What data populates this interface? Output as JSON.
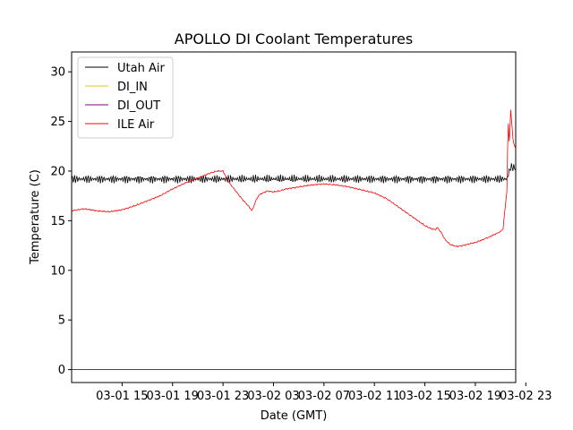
{
  "chart_data": {
    "type": "line",
    "title": "APOLLO DI Coolant Temperatures",
    "xlabel": "Date (GMT)",
    "ylabel": "Temperature (C)",
    "x_unit": "hours since 03-01 11:00 GMT",
    "xlim": [
      0,
      35.2
    ],
    "ylim": [
      -1.3,
      32
    ],
    "yticks": [
      0,
      5,
      10,
      15,
      20,
      25,
      30
    ],
    "xticks": [
      {
        "x": 4,
        "label": "03-01 15"
      },
      {
        "x": 8,
        "label": "03-01 19"
      },
      {
        "x": 12,
        "label": "03-01 23"
      },
      {
        "x": 16,
        "label": "03-02 03"
      },
      {
        "x": 20,
        "label": "03-02 07"
      },
      {
        "x": 24,
        "label": "03-02 11"
      },
      {
        "x": 28,
        "label": "03-02 15"
      },
      {
        "x": 32,
        "label": "03-02 19"
      },
      {
        "x": 36,
        "label": "03-02 23"
      }
    ],
    "grid": false,
    "legend_position": "top-left",
    "series": [
      {
        "name": "Utah Air",
        "color": "#000000",
        "x": [
          0,
          34.5,
          34.8,
          35.2
        ],
        "values": [
          19.2,
          19.2,
          20.4,
          20.3
        ],
        "noise": 0.45
      },
      {
        "name": "DI_IN",
        "color": "#e3c11b",
        "x": [
          0,
          35.2
        ],
        "values": [
          0.0,
          0.0
        ],
        "noise": 0
      },
      {
        "name": "DI_OUT",
        "color": "#800080",
        "x": [
          0,
          35.2
        ],
        "values": [
          0.0,
          0.0
        ],
        "noise": 0
      },
      {
        "name": "ILE Air",
        "color": "#ff0000",
        "x": [
          0,
          1,
          2,
          3,
          4,
          5,
          6,
          7,
          8,
          9,
          10,
          11,
          11.5,
          12,
          12.5,
          13,
          13.5,
          14,
          14.3,
          14.6,
          14.8,
          15,
          15.5,
          16,
          16.5,
          17,
          18,
          19,
          20,
          21,
          22,
          23,
          24,
          25,
          26,
          27,
          28,
          28.5,
          28.8,
          29,
          29.3,
          29.6,
          30,
          30.5,
          31,
          32,
          33,
          34,
          34.2,
          34.3,
          34.5,
          34.6,
          34.7,
          34.8,
          35,
          35.2
        ],
        "values": [
          16.0,
          16.2,
          16.0,
          15.9,
          16.1,
          16.5,
          17.0,
          17.5,
          18.2,
          18.8,
          19.3,
          19.8,
          20.0,
          20.0,
          18.8,
          18.0,
          17.2,
          16.5,
          16.0,
          17.0,
          17.5,
          17.7,
          18.0,
          17.9,
          18.0,
          18.2,
          18.4,
          18.6,
          18.7,
          18.6,
          18.4,
          18.1,
          17.8,
          17.2,
          16.3,
          15.4,
          14.5,
          14.2,
          14.1,
          14.3,
          13.8,
          13.1,
          12.6,
          12.4,
          12.5,
          12.8,
          13.3,
          13.9,
          14.2,
          15.5,
          18.0,
          25.3,
          22.5,
          26.2,
          23.0,
          22.2
        ],
        "noise": 0.07
      }
    ]
  }
}
